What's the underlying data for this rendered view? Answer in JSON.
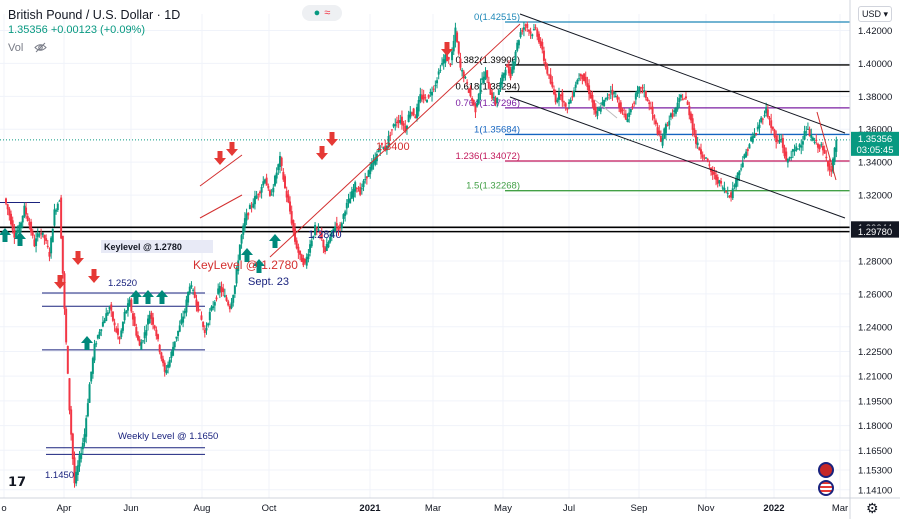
{
  "header": {
    "title": "British Pound / U.S. Dollar · 1D",
    "quote": "1.35356  +0.00123 (+0.09%)",
    "volume_label": "Vol",
    "currency": "USD"
  },
  "colors": {
    "up": "#089981",
    "down": "#f23645",
    "fib_teal": "#1e88b8",
    "fib_black": "#000000",
    "fib_purple": "#7b1fa2",
    "fib_blue": "#1565c0",
    "fib_red": "#c2185b",
    "fib_green": "#43a047",
    "trend_red": "#d32f2f",
    "annot_blue": "#1a237e"
  },
  "chart_data": {
    "type": "candlestick",
    "symbol": "GBPUSD",
    "timeframe": "1D",
    "x_ticks": [
      "o",
      "Apr",
      "Jun",
      "Aug",
      "Oct",
      "2021",
      "Mar",
      "May",
      "Jul",
      "Sep",
      "Nov",
      "2022",
      "Mar"
    ],
    "y_ticks": [
      "1.42000",
      "1.40000",
      "1.38000",
      "1.36000",
      "1.34000",
      "1.32000",
      "1.30000",
      "1.28000",
      "1.26000",
      "1.24000",
      "1.22500",
      "1.21000",
      "1.19500",
      "1.18000",
      "1.16500",
      "1.15300",
      "1.14100"
    ],
    "ylim": [
      1.136,
      1.43
    ],
    "last_price_label": "1.35356",
    "countdown_label": "03:05:45",
    "fib_levels": [
      {
        "ratio": "0",
        "price": 1.42515,
        "label": "0(1.42515)"
      },
      {
        "ratio": "0.382",
        "price": 1.39906,
        "label": "0.382(1.39906)"
      },
      {
        "ratio": "0.618",
        "price": 1.38294,
        "label": "0.618(1.38294)"
      },
      {
        "ratio": "0.764",
        "price": 1.37296,
        "label": "0.764(1.37296)"
      },
      {
        "ratio": "1",
        "price": 1.35684,
        "label": "1(1.35684)"
      },
      {
        "ratio": "1.236",
        "price": 1.34072,
        "label": "1.236(1.34072)"
      },
      {
        "ratio": "1.5",
        "price": 1.32268,
        "label": "1.5(1.32268)"
      }
    ],
    "key_levels": [
      {
        "price": 1.30044,
        "label": "1.30044"
      },
      {
        "price": 1.2978,
        "label": "1.29780"
      }
    ],
    "annotations": [
      "Keylevel @ 1.2780",
      "1.2520",
      "Weekly Level @ 1.1650",
      "1.1450",
      "KeyLevel @ 1.2780",
      "Sept. 23",
      "1.2840",
      "1.3400"
    ],
    "price_path": [
      1.318,
      1.308,
      1.296,
      1.3,
      1.312,
      1.302,
      1.29,
      1.298,
      1.294,
      1.284,
      1.31,
      1.318,
      1.25,
      1.19,
      1.145,
      1.16,
      1.175,
      1.205,
      1.228,
      1.238,
      1.245,
      1.252,
      1.24,
      1.232,
      1.248,
      1.255,
      1.24,
      1.228,
      1.236,
      1.248,
      1.24,
      1.226,
      1.212,
      1.22,
      1.232,
      1.24,
      1.25,
      1.266,
      1.258,
      1.248,
      1.236,
      1.248,
      1.256,
      1.264,
      1.258,
      1.252,
      1.265,
      1.29,
      1.305,
      1.312,
      1.318,
      1.323,
      1.331,
      1.318,
      1.33,
      1.342,
      1.324,
      1.31,
      1.292,
      1.282,
      1.278,
      1.29,
      1.3,
      1.296,
      1.286,
      1.294,
      1.302,
      1.3,
      1.312,
      1.318,
      1.326,
      1.322,
      1.33,
      1.336,
      1.342,
      1.35,
      1.348,
      1.358,
      1.364,
      1.366,
      1.36,
      1.372,
      1.368,
      1.38,
      1.378,
      1.382,
      1.388,
      1.398,
      1.404,
      1.4,
      1.42,
      1.397,
      1.39,
      1.38,
      1.372,
      1.388,
      1.394,
      1.382,
      1.376,
      1.388,
      1.398,
      1.393,
      1.408,
      1.419,
      1.424,
      1.418,
      1.421,
      1.411,
      1.398,
      1.388,
      1.378,
      1.382,
      1.372,
      1.378,
      1.388,
      1.394,
      1.388,
      1.38,
      1.368,
      1.374,
      1.378,
      1.384,
      1.38,
      1.372,
      1.366,
      1.372,
      1.38,
      1.386,
      1.38,
      1.372,
      1.362,
      1.352,
      1.362,
      1.368,
      1.372,
      1.38,
      1.378,
      1.366,
      1.352,
      1.346,
      1.342,
      1.334,
      1.33,
      1.326,
      1.322,
      1.32,
      1.33,
      1.338,
      1.346,
      1.354,
      1.358,
      1.366,
      1.372,
      1.362,
      1.352,
      1.354,
      1.34,
      1.345,
      1.348,
      1.352,
      1.36,
      1.355,
      1.351,
      1.349,
      1.342,
      1.334,
      1.3536
    ]
  }
}
